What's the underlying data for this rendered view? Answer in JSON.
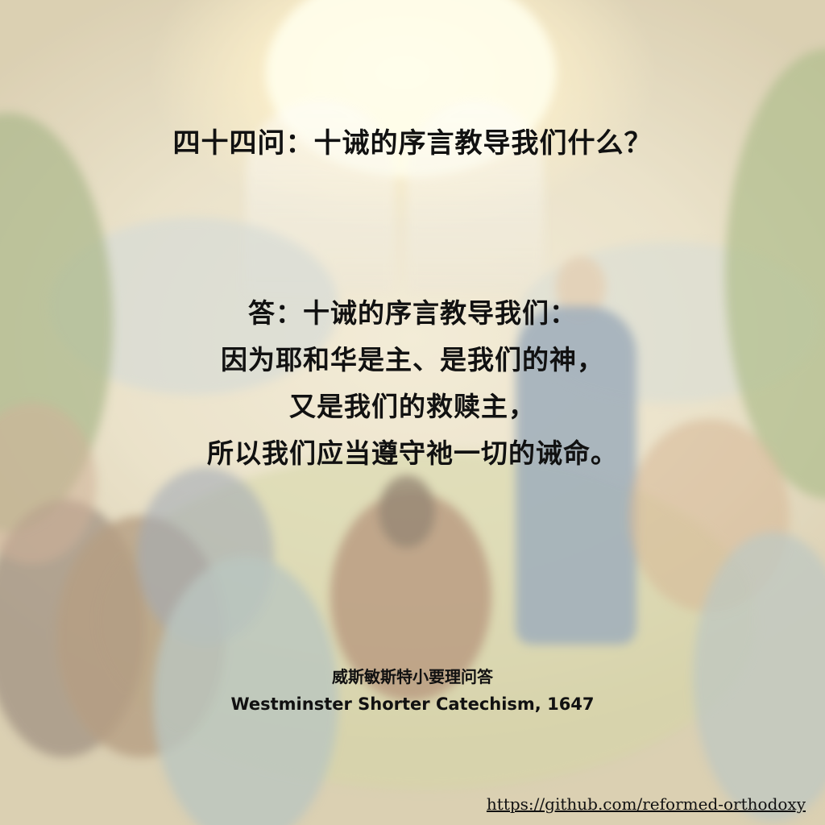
{
  "question": {
    "title": "四十四问：十诫的序言教导我们什么？"
  },
  "answer": {
    "lines": [
      "答：十诫的序言教导我们：",
      "因为耶和华是主、是我们的神，",
      "又是我们的救赎主，",
      "所以我们应当遵守祂一切的诫命。"
    ]
  },
  "source": {
    "chinese": "威斯敏斯特小要理问答",
    "english": "Westminster Shorter Catechism, 1647"
  },
  "link": {
    "text": "https://github.com/reformed-orthodoxy"
  },
  "colors": {
    "text": "#111111",
    "background_light": "#f3ead3",
    "foliage": "#8fa06a",
    "robe_blue": "#7f93a8",
    "robe_brown": "#9a7a5a"
  }
}
